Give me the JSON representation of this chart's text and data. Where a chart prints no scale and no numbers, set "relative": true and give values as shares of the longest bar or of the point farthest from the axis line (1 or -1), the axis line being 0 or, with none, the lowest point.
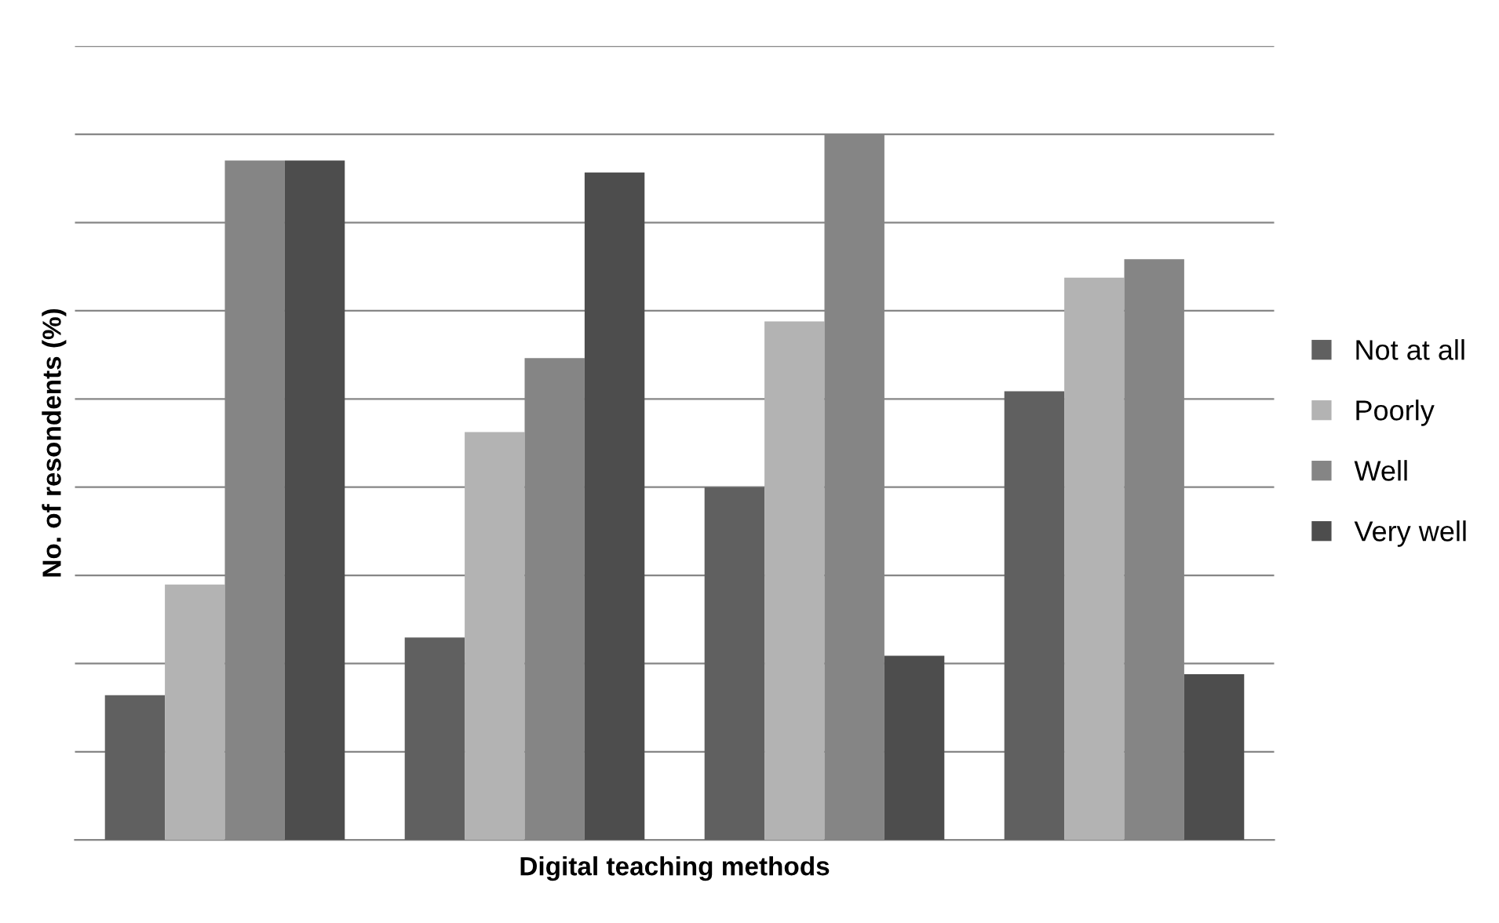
{
  "chart_data": {
    "type": "bar",
    "relative": true,
    "xlabel": "Digital teaching methods",
    "ylabel": "No. of resondents (%)",
    "categories": [
      null,
      null,
      null,
      null
    ],
    "series": [
      {
        "name": "Not at all",
        "color": "#606060",
        "values": [
          0.205,
          0.287,
          0.5,
          0.636
        ]
      },
      {
        "name": "Poorly",
        "color": "#b3b3b3",
        "values": [
          0.362,
          0.578,
          0.735,
          0.797
        ]
      },
      {
        "name": "Well",
        "color": "#858585",
        "values": [
          0.963,
          0.683,
          1,
          0.823
        ]
      },
      {
        "name": "Very well",
        "color": "#4d4d4d",
        "values": [
          0.963,
          0.946,
          0.261,
          0.235
        ]
      }
    ],
    "grid": "y",
    "legend": "right"
  }
}
